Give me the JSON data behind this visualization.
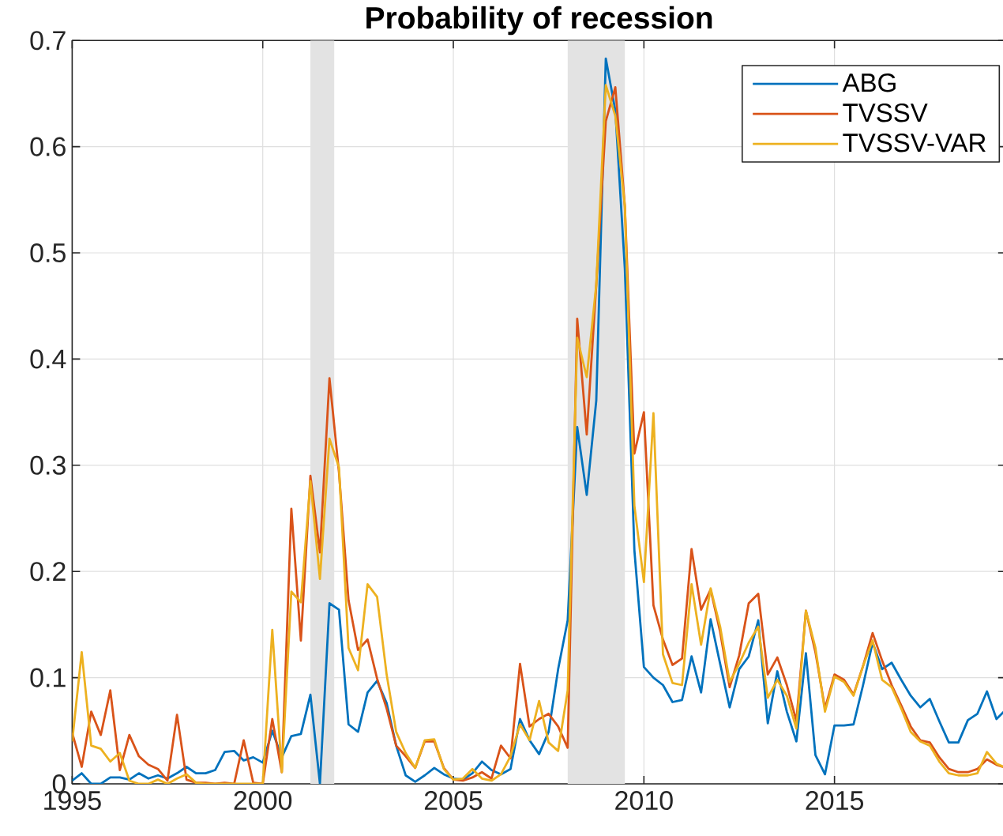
{
  "chart_data": {
    "type": "line",
    "title": "Probability of recession",
    "x": [
      1995,
      1995.25,
      1995.5,
      1995.75,
      1996,
      1996.25,
      1996.5,
      1996.75,
      1997,
      1997.25,
      1997.5,
      1997.75,
      1998,
      1998.25,
      1998.5,
      1998.75,
      1999,
      1999.25,
      1999.5,
      1999.75,
      2000,
      2000.25,
      2000.5,
      2000.75,
      2001,
      2001.25,
      2001.5,
      2001.75,
      2002,
      2002.25,
      2002.5,
      2002.75,
      2003,
      2003.25,
      2003.5,
      2003.75,
      2004,
      2004.25,
      2004.5,
      2004.75,
      2005,
      2005.25,
      2005.5,
      2005.75,
      2006,
      2006.25,
      2006.5,
      2006.75,
      2007,
      2007.25,
      2007.5,
      2007.75,
      2008,
      2008.25,
      2008.5,
      2008.75,
      2009,
      2009.25,
      2009.5,
      2009.75,
      2010,
      2010.25,
      2010.5,
      2010.75,
      2011,
      2011.25,
      2011.5,
      2011.75,
      2012,
      2012.25,
      2012.5,
      2012.75,
      2013,
      2013.25,
      2013.5,
      2013.75,
      2014,
      2014.25,
      2014.5,
      2014.75,
      2015,
      2015.25,
      2015.5,
      2015.75,
      2016,
      2016.25,
      2016.5,
      2016.75,
      2017,
      2017.25,
      2017.5,
      2017.75,
      2018,
      2018.25,
      2018.5,
      2018.75,
      2019,
      2019.25,
      2019.5
    ],
    "series": [
      {
        "name": "ABG",
        "color": "#0072bd",
        "values": [
          0.003,
          0.01,
          0.0,
          0.0,
          0.006,
          0.006,
          0.004,
          0.01,
          0.005,
          0.008,
          0.005,
          0.01,
          0.016,
          0.01,
          0.01,
          0.013,
          0.03,
          0.031,
          0.022,
          0.025,
          0.02,
          0.05,
          0.025,
          0.045,
          0.047,
          0.084,
          0.0,
          0.17,
          0.164,
          0.056,
          0.049,
          0.086,
          0.097,
          0.076,
          0.036,
          0.008,
          0.002,
          0.008,
          0.015,
          0.009,
          0.005,
          0.004,
          0.01,
          0.021,
          0.013,
          0.009,
          0.014,
          0.061,
          0.041,
          0.028,
          0.049,
          0.108,
          0.154,
          0.336,
          0.272,
          0.361,
          0.683,
          0.634,
          0.485,
          0.22,
          0.11,
          0.1,
          0.093,
          0.077,
          0.079,
          0.12,
          0.086,
          0.155,
          0.113,
          0.072,
          0.108,
          0.12,
          0.154,
          0.057,
          0.106,
          0.068,
          0.04,
          0.123,
          0.027,
          0.009,
          0.055,
          0.055,
          0.056,
          0.093,
          0.133,
          0.108,
          0.114,
          0.098,
          0.083,
          0.072,
          0.08,
          0.059,
          0.039,
          0.039,
          0.06,
          0.066,
          0.087,
          0.061,
          0.07
        ]
      },
      {
        "name": "TVSSV",
        "color": "#d95319",
        "values": [
          0.048,
          0.016,
          0.068,
          0.046,
          0.088,
          0.013,
          0.046,
          0.026,
          0.018,
          0.014,
          0.003,
          0.065,
          0.004,
          0.001,
          0.001,
          0.0,
          0.001,
          0.0,
          0.041,
          0.001,
          0.0,
          0.061,
          0.011,
          0.259,
          0.135,
          0.29,
          0.218,
          0.382,
          0.293,
          0.173,
          0.126,
          0.136,
          0.099,
          0.071,
          0.036,
          0.026,
          0.015,
          0.04,
          0.04,
          0.015,
          0.004,
          0.003,
          0.006,
          0.011,
          0.005,
          0.036,
          0.024,
          0.113,
          0.054,
          0.061,
          0.066,
          0.054,
          0.034,
          0.438,
          0.329,
          0.47,
          0.624,
          0.656,
          0.544,
          0.311,
          0.35,
          0.168,
          0.136,
          0.112,
          0.118,
          0.221,
          0.164,
          0.183,
          0.143,
          0.091,
          0.121,
          0.17,
          0.179,
          0.103,
          0.119,
          0.093,
          0.059,
          0.163,
          0.124,
          0.071,
          0.103,
          0.098,
          0.084,
          0.111,
          0.142,
          0.116,
          0.093,
          0.074,
          0.054,
          0.041,
          0.039,
          0.025,
          0.014,
          0.011,
          0.011,
          0.014,
          0.023,
          0.018,
          0.015
        ]
      },
      {
        "name": "TVSSV-VAR",
        "color": "#edb120",
        "values": [
          0.04,
          0.124,
          0.036,
          0.033,
          0.021,
          0.029,
          0.003,
          0.0,
          0.0,
          0.004,
          0.0,
          0.005,
          0.009,
          0.001,
          0.0,
          0.0,
          0.0,
          0.0,
          0.0,
          0.0,
          0.0,
          0.145,
          0.011,
          0.181,
          0.171,
          0.285,
          0.193,
          0.325,
          0.298,
          0.128,
          0.107,
          0.188,
          0.176,
          0.103,
          0.049,
          0.029,
          0.015,
          0.041,
          0.042,
          0.014,
          0.004,
          0.005,
          0.014,
          0.005,
          0.003,
          0.009,
          0.026,
          0.056,
          0.041,
          0.078,
          0.039,
          0.031,
          0.088,
          0.42,
          0.383,
          0.47,
          0.658,
          0.629,
          0.544,
          0.262,
          0.19,
          0.349,
          0.122,
          0.095,
          0.093,
          0.188,
          0.131,
          0.184,
          0.148,
          0.096,
          0.113,
          0.133,
          0.148,
          0.081,
          0.098,
          0.083,
          0.052,
          0.163,
          0.128,
          0.068,
          0.101,
          0.096,
          0.083,
          0.111,
          0.135,
          0.098,
          0.091,
          0.071,
          0.049,
          0.04,
          0.036,
          0.021,
          0.01,
          0.008,
          0.008,
          0.01,
          0.03,
          0.019,
          0.015
        ]
      }
    ],
    "xlim": [
      1995,
      2019.5
    ],
    "xticks": [
      1995,
      2000,
      2005,
      2010,
      2015
    ],
    "ylim": [
      0,
      0.7
    ],
    "yticks": [
      0,
      0.1,
      0.2,
      0.3,
      0.4,
      0.5,
      0.6,
      0.7
    ],
    "grid": true,
    "legend": "top right",
    "bands": [
      {
        "axis": "x",
        "from": 2001.25,
        "to": 2001.875,
        "color": "#e3e3e3"
      },
      {
        "axis": "x",
        "from": 2008,
        "to": 2009.5,
        "color": "#e3e3e3"
      }
    ]
  }
}
